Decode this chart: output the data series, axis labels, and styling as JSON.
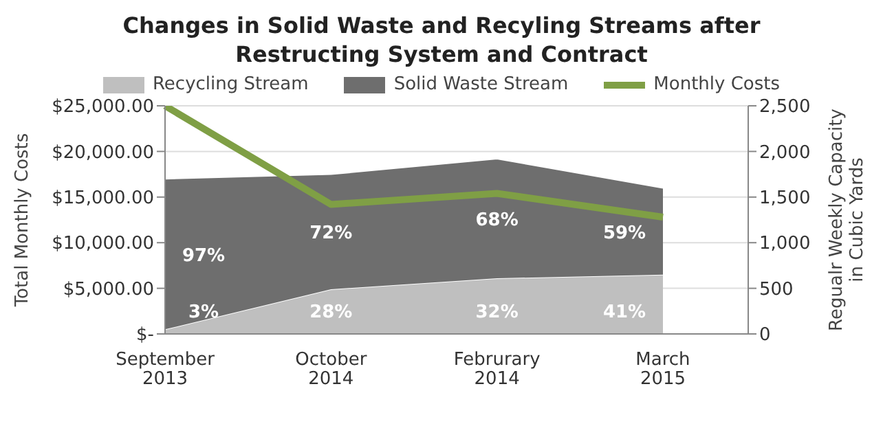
{
  "chart_data": {
    "type": "area",
    "title": "Changes in Solid Waste and Recyling Streams after Restructing System and Contract",
    "categories": [
      "September 2013",
      "October 2014",
      "Februrary 2014",
      "March 2015"
    ],
    "stacked": true,
    "legend": "top",
    "grid": "y",
    "ylabel": "Total Monthly Costs",
    "y2label": "Regualr Weekly Capacity in Cubic Yards",
    "ylim": [
      0,
      25000
    ],
    "yticks": [
      {
        "value": 0,
        "label": "$-"
      },
      {
        "value": 5000,
        "label": "$5,000.00"
      },
      {
        "value": 10000,
        "label": "$10,000.00"
      },
      {
        "value": 15000,
        "label": "$15,000.00"
      },
      {
        "value": 20000,
        "label": "$20,000.00"
      },
      {
        "value": 25000,
        "label": "$25,000.00"
      }
    ],
    "y2lim": [
      0,
      2500
    ],
    "y2ticks": [
      0,
      500,
      {
        "value": 1000,
        "label": "1,000"
      },
      {
        "value": 1500,
        "label": "1,500"
      },
      {
        "value": 2000,
        "label": "2,000"
      },
      {
        "value": 2500,
        "label": "2,500"
      }
    ],
    "series": [
      {
        "name": "Recycling Stream",
        "axis": "y2",
        "color": "#bfbfbf",
        "values": [
          50,
          490,
          610,
          650
        ]
      },
      {
        "name": "Solid Waste Stream",
        "axis": "y2",
        "color": "#6e6e6e",
        "values": [
          1650,
          1260,
          1310,
          950
        ]
      },
      {
        "name": "Monthly Costs",
        "type": "line",
        "axis": "y",
        "color": "#7f9f45",
        "values": [
          25000,
          14200,
          15400,
          12800
        ]
      }
    ],
    "annotations": [
      "97%",
      "3%",
      "72%",
      "28%",
      "68%",
      "32%",
      "59%",
      "41%"
    ]
  }
}
